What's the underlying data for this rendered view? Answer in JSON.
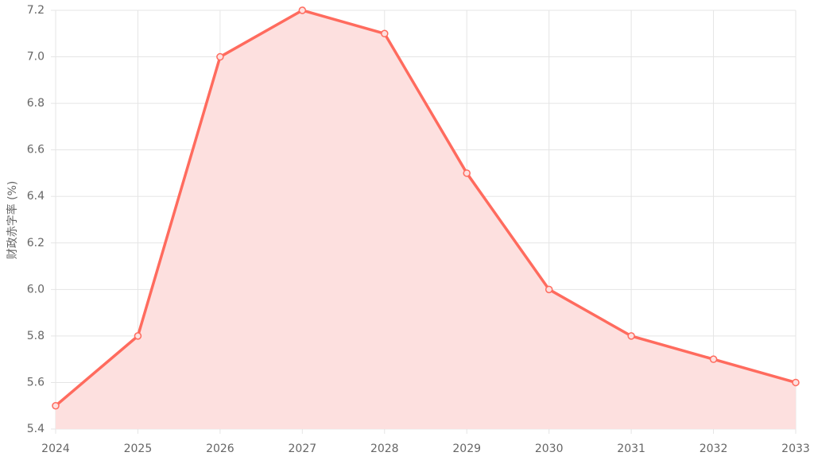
{
  "chart_data": {
    "type": "area",
    "y_label": "财政赤字率 (%)",
    "categories": [
      "2024",
      "2025",
      "2026",
      "2027",
      "2028",
      "2029",
      "2030",
      "2031",
      "2032",
      "2033"
    ],
    "values": [
      5.5,
      5.8,
      7.0,
      7.2,
      7.1,
      6.5,
      6.0,
      5.8,
      5.7,
      5.6
    ],
    "color": "#ff6b5e",
    "area_color": "#fde0df",
    "ylim": [
      5.4,
      7.2
    ],
    "yticks": [
      5.4,
      5.6,
      5.8,
      {
        "value": 6,
        "label": "6.0"
      },
      6.2,
      6.4,
      6.6,
      6.8,
      {
        "value": 7,
        "label": "7.0"
      },
      7.2
    ],
    "grid": true
  }
}
